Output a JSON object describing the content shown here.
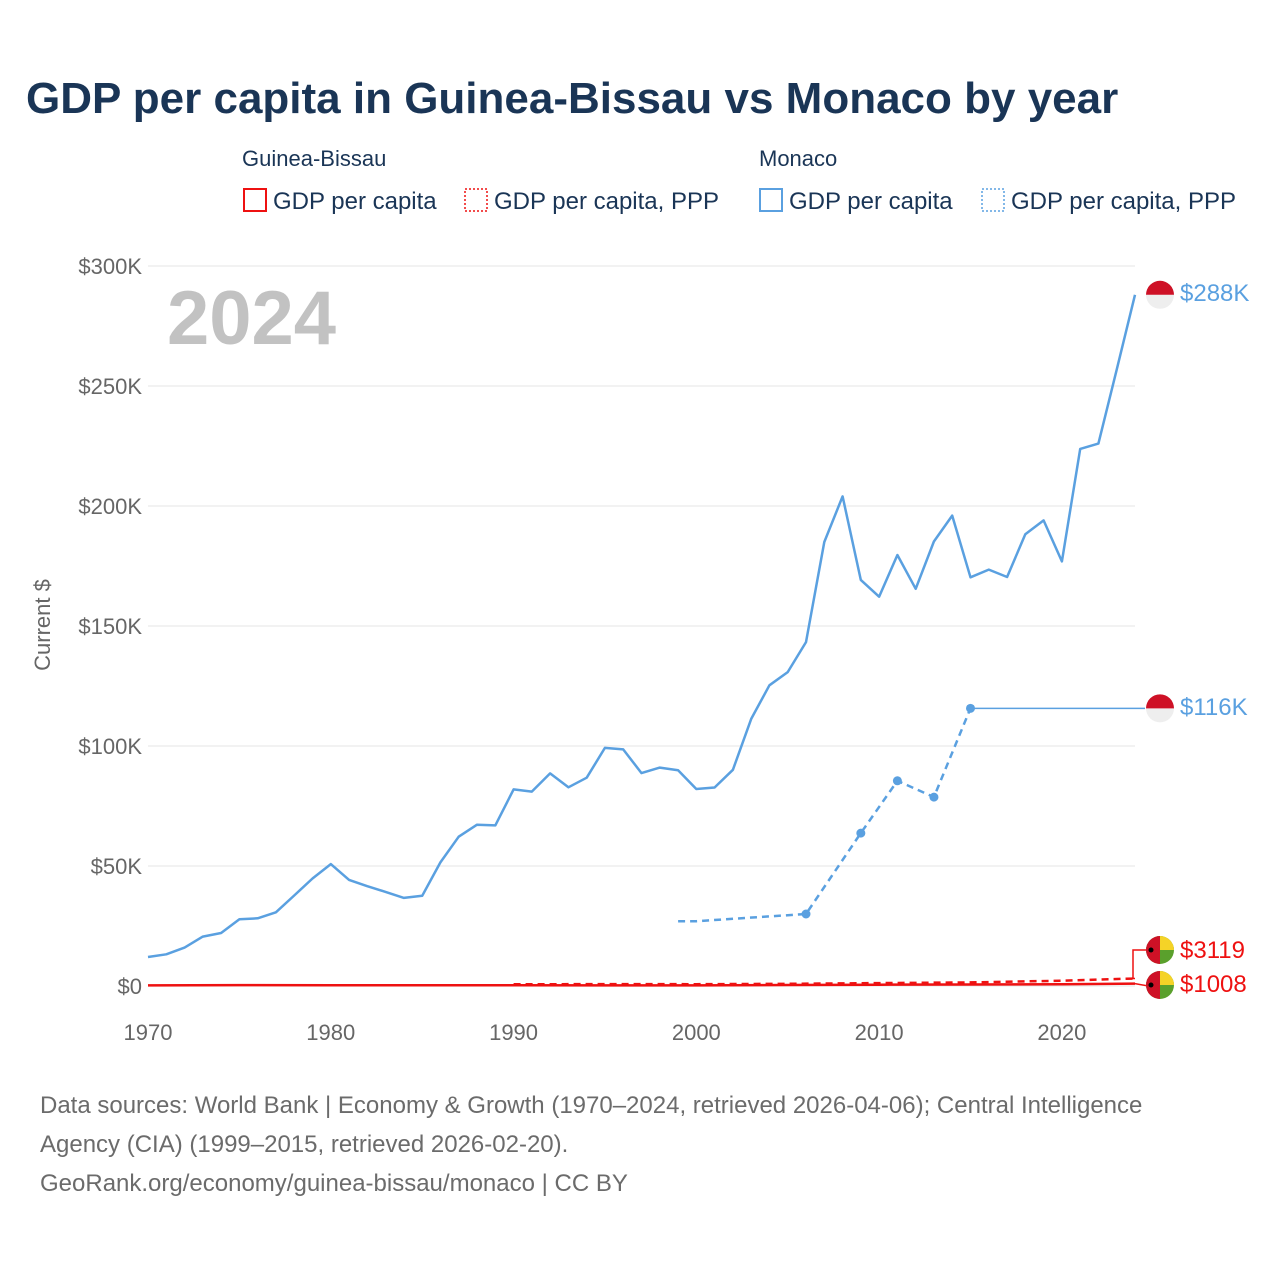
{
  "title": "GDP per capita in Guinea-Bissau vs Monaco by year",
  "year_watermark": "2024",
  "colors": {
    "guinea_bissau": "#ee1111",
    "monaco": "#5aa0e0",
    "title": "#1a3556",
    "grid": "#e6e6e6",
    "muted": "#666666"
  },
  "legend": {
    "guinea_bissau": {
      "name": "Guinea-Bissau",
      "items": [
        "GDP per capita",
        "GDP per capita, PPP"
      ]
    },
    "monaco": {
      "name": "Monaco",
      "items": [
        "GDP per capita",
        "GDP per capita, PPP"
      ]
    }
  },
  "end_labels": {
    "monaco_gdp": "$288K",
    "monaco_ppp": "$116K",
    "gb_ppp": "$3119",
    "gb_gdp": "$1008"
  },
  "source": {
    "line1": "Data sources: World Bank | Economy & Growth (1970–2024, retrieved 2026-04-06); Central Intelligence",
    "line2": "Agency (CIA) (1999–2015, retrieved 2026-02-20).",
    "line3": "GeoRank.org/economy/guinea-bissau/monaco | CC BY"
  },
  "chart_data": {
    "type": "line",
    "title": "GDP per capita in Guinea-Bissau vs Monaco by year",
    "xlabel": "",
    "ylabel": "Current $",
    "xlim": [
      1970,
      2024
    ],
    "ylim": [
      0,
      300000
    ],
    "x_ticks": [
      1970,
      1980,
      1990,
      2000,
      2010,
      2020
    ],
    "y_ticks": [
      0,
      50000,
      100000,
      150000,
      200000,
      250000,
      300000
    ],
    "y_tick_labels": [
      "$0",
      "$50K",
      "$100K",
      "$150K",
      "$200K",
      "$250K",
      "$300K"
    ],
    "series": [
      {
        "name": "Monaco GDP per capita",
        "country": "Monaco",
        "style": "solid",
        "x": [
          1970,
          1971,
          1972,
          1973,
          1974,
          1975,
          1976,
          1977,
          1978,
          1979,
          1980,
          1981,
          1982,
          1983,
          1984,
          1985,
          1986,
          1987,
          1988,
          1989,
          1990,
          1991,
          1992,
          1993,
          1994,
          1995,
          1996,
          1997,
          1998,
          1999,
          2000,
          2001,
          2002,
          2003,
          2004,
          2005,
          2006,
          2007,
          2008,
          2009,
          2010,
          2011,
          2012,
          2013,
          2014,
          2015,
          2016,
          2017,
          2018,
          2019,
          2020,
          2021,
          2022,
          2023,
          2024
        ],
        "values": [
          12100,
          13200,
          16000,
          20600,
          22100,
          27800,
          28200,
          30700,
          37700,
          44800,
          50800,
          44200,
          41600,
          39200,
          36700,
          37600,
          51500,
          62200,
          67200,
          66900,
          81900,
          81000,
          88600,
          82800,
          86800,
          99200,
          98600,
          88700,
          91000,
          89900,
          82100,
          82700,
          90100,
          111300,
          125300,
          130800,
          143300,
          185000,
          204000,
          169200,
          162200,
          179600,
          165500,
          185200,
          196000,
          170300,
          173500,
          170400,
          188200,
          194000,
          176900,
          223800,
          226000,
          256800,
          288000
        ]
      },
      {
        "name": "Monaco GDP per capita, PPP",
        "country": "Monaco",
        "style": "dashed",
        "x": [
          1999,
          2000,
          2006,
          2009,
          2011,
          2013,
          2015
        ],
        "values": [
          27000,
          27000,
          30000,
          63700,
          85500,
          78700,
          115700
        ],
        "markers": [
          2006,
          2009,
          2011,
          2013,
          2015
        ],
        "final_value": 115700
      },
      {
        "name": "Guinea-Bissau GDP per capita",
        "country": "Guinea-Bissau",
        "style": "solid",
        "x": [
          1970,
          1975,
          1980,
          1985,
          1990,
          1995,
          2000,
          2005,
          2010,
          2015,
          2020,
          2024
        ],
        "values": [
          250,
          380,
          330,
          290,
          300,
          260,
          240,
          400,
          560,
          640,
          750,
          1008
        ]
      },
      {
        "name": "Guinea-Bissau GDP per capita, PPP",
        "country": "Guinea-Bissau",
        "style": "dashed",
        "x": [
          1990,
          1995,
          2000,
          2005,
          2010,
          2015,
          2020,
          2024
        ],
        "values": [
          700,
          800,
          750,
          900,
          1200,
          1500,
          2200,
          3119
        ]
      }
    ]
  }
}
